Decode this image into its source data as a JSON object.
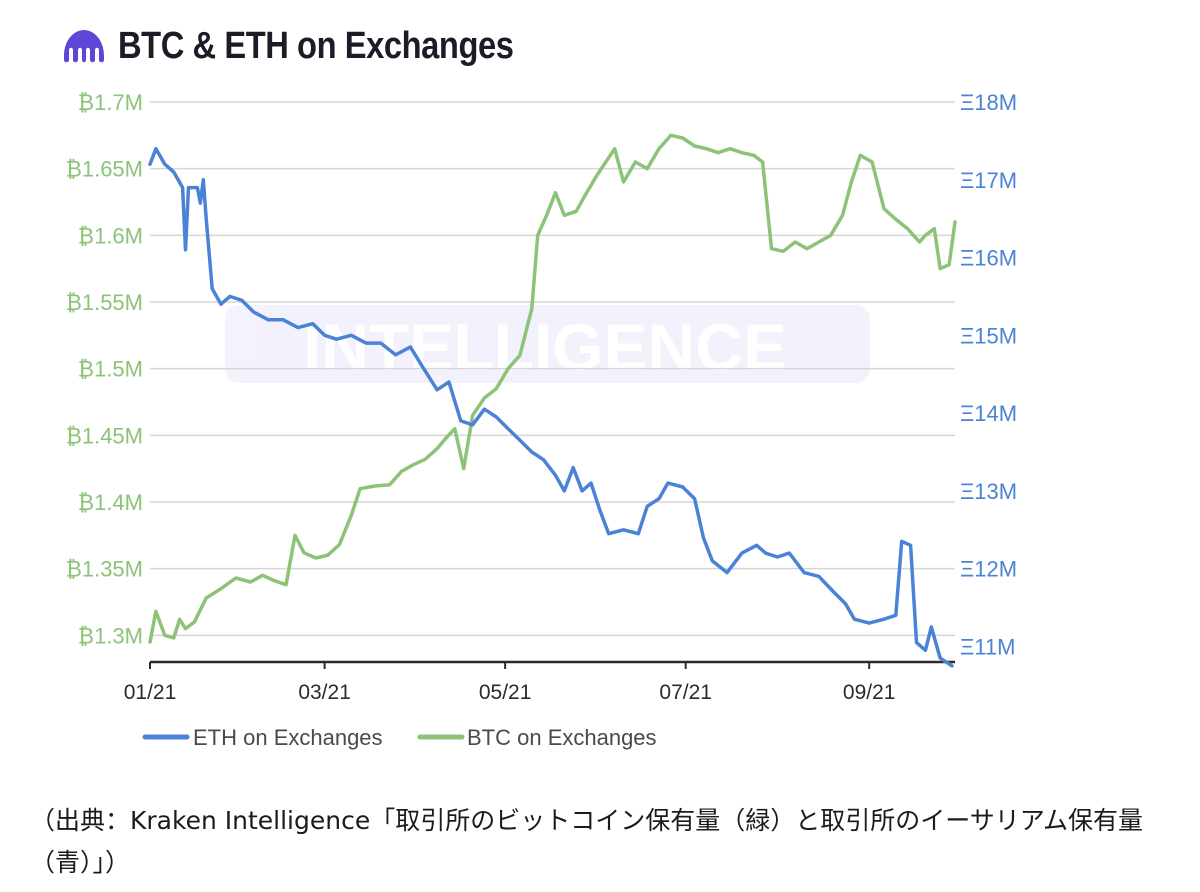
{
  "title": "BTC & ETH on Exchanges",
  "watermark": "INTELLIGENCE",
  "caption": "（出典：Kraken Intelligence「取引所のビットコイン保有量（緑）と取引所のイーサリアム保有量（青）」）",
  "colors": {
    "btc": "#8cc378",
    "eth": "#4a83d6",
    "logo": "#6046d8",
    "grid": "#d6d6d6",
    "axis": "#2b2b2b"
  },
  "chart_data": {
    "type": "line",
    "title": "BTC & ETH on Exchanges",
    "x_ticks": [
      "01/21",
      "03/21",
      "05/21",
      "07/21",
      "09/21"
    ],
    "x_range": [
      "2021-01-01",
      "2021-09-30"
    ],
    "y_left": {
      "unit": "BTC",
      "range": [
        1.28,
        1.7
      ],
      "ticks": [
        {
          "value": 1.7,
          "label": "₿1.7M"
        },
        {
          "value": 1.65,
          "label": "₿1.65M"
        },
        {
          "value": 1.6,
          "label": "₿1.6M"
        },
        {
          "value": 1.55,
          "label": "₿1.55M"
        },
        {
          "value": 1.5,
          "label": "₿1.5M"
        },
        {
          "value": 1.45,
          "label": "₿1.45M"
        },
        {
          "value": 1.4,
          "label": "₿1.4M"
        },
        {
          "value": 1.35,
          "label": "₿1.35M"
        },
        {
          "value": 1.3,
          "label": "₿1.3M"
        }
      ]
    },
    "y_right": {
      "unit": "ETH",
      "range": [
        10.8,
        18
      ],
      "ticks": [
        {
          "value": 18,
          "label": "Ξ18M"
        },
        {
          "value": 17,
          "label": "Ξ17M"
        },
        {
          "value": 16,
          "label": "Ξ16M"
        },
        {
          "value": 15,
          "label": "Ξ15M"
        },
        {
          "value": 14,
          "label": "Ξ14M"
        },
        {
          "value": 13,
          "label": "Ξ13M"
        },
        {
          "value": 12,
          "label": "Ξ12M"
        },
        {
          "value": 11,
          "label": "Ξ11M"
        }
      ]
    },
    "grid": true,
    "legend_position": "bottom-left",
    "series": [
      {
        "name": "ETH on Exchanges",
        "axis": "right",
        "points": [
          [
            "2021-01-01",
            17.2
          ],
          [
            "2021-01-03",
            17.4
          ],
          [
            "2021-01-06",
            17.2
          ],
          [
            "2021-01-09",
            17.1
          ],
          [
            "2021-01-12",
            16.9
          ],
          [
            "2021-01-13",
            16.1
          ],
          [
            "2021-01-14",
            16.9
          ],
          [
            "2021-01-17",
            16.9
          ],
          [
            "2021-01-18",
            16.7
          ],
          [
            "2021-01-19",
            17.0
          ],
          [
            "2021-01-20",
            16.5
          ],
          [
            "2021-01-22",
            15.6
          ],
          [
            "2021-01-25",
            15.4
          ],
          [
            "2021-01-28",
            15.5
          ],
          [
            "2021-02-01",
            15.45
          ],
          [
            "2021-02-05",
            15.3
          ],
          [
            "2021-02-10",
            15.2
          ],
          [
            "2021-02-15",
            15.2
          ],
          [
            "2021-02-20",
            15.1
          ],
          [
            "2021-02-25",
            15.15
          ],
          [
            "2021-03-01",
            15.0
          ],
          [
            "2021-03-05",
            14.95
          ],
          [
            "2021-03-10",
            15.0
          ],
          [
            "2021-03-15",
            14.9
          ],
          [
            "2021-03-20",
            14.9
          ],
          [
            "2021-03-25",
            14.75
          ],
          [
            "2021-03-30",
            14.85
          ],
          [
            "2021-04-03",
            14.6
          ],
          [
            "2021-04-08",
            14.3
          ],
          [
            "2021-04-12",
            14.4
          ],
          [
            "2021-04-16",
            13.9
          ],
          [
            "2021-04-20",
            13.85
          ],
          [
            "2021-04-24",
            14.05
          ],
          [
            "2021-04-28",
            13.95
          ],
          [
            "2021-05-02",
            13.8
          ],
          [
            "2021-05-06",
            13.65
          ],
          [
            "2021-05-10",
            13.5
          ],
          [
            "2021-05-14",
            13.4
          ],
          [
            "2021-05-18",
            13.2
          ],
          [
            "2021-05-21",
            13.0
          ],
          [
            "2021-05-24",
            13.3
          ],
          [
            "2021-05-27",
            13.0
          ],
          [
            "2021-05-30",
            13.1
          ],
          [
            "2021-06-02",
            12.75
          ],
          [
            "2021-06-05",
            12.45
          ],
          [
            "2021-06-10",
            12.5
          ],
          [
            "2021-06-15",
            12.45
          ],
          [
            "2021-06-18",
            12.8
          ],
          [
            "2021-06-22",
            12.9
          ],
          [
            "2021-06-25",
            13.1
          ],
          [
            "2021-06-30",
            13.05
          ],
          [
            "2021-07-04",
            12.9
          ],
          [
            "2021-07-07",
            12.4
          ],
          [
            "2021-07-10",
            12.1
          ],
          [
            "2021-07-15",
            11.95
          ],
          [
            "2021-07-20",
            12.2
          ],
          [
            "2021-07-25",
            12.3
          ],
          [
            "2021-07-28",
            12.2
          ],
          [
            "2021-08-01",
            12.15
          ],
          [
            "2021-08-05",
            12.2
          ],
          [
            "2021-08-10",
            11.95
          ],
          [
            "2021-08-15",
            11.9
          ],
          [
            "2021-08-20",
            11.7
          ],
          [
            "2021-08-24",
            11.55
          ],
          [
            "2021-08-27",
            11.35
          ],
          [
            "2021-09-01",
            11.3
          ],
          [
            "2021-09-06",
            11.35
          ],
          [
            "2021-09-10",
            11.4
          ],
          [
            "2021-09-12",
            12.35
          ],
          [
            "2021-09-15",
            12.3
          ],
          [
            "2021-09-17",
            11.05
          ],
          [
            "2021-09-20",
            10.95
          ],
          [
            "2021-09-22",
            11.25
          ],
          [
            "2021-09-25",
            10.85
          ],
          [
            "2021-09-29",
            10.75
          ]
        ]
      },
      {
        "name": "BTC on Exchanges",
        "axis": "left",
        "points": [
          [
            "2021-01-01",
            1.295
          ],
          [
            "2021-01-03",
            1.318
          ],
          [
            "2021-01-06",
            1.3
          ],
          [
            "2021-01-09",
            1.298
          ],
          [
            "2021-01-11",
            1.312
          ],
          [
            "2021-01-13",
            1.305
          ],
          [
            "2021-01-16",
            1.31
          ],
          [
            "2021-01-20",
            1.328
          ],
          [
            "2021-01-25",
            1.335
          ],
          [
            "2021-01-30",
            1.343
          ],
          [
            "2021-02-04",
            1.34
          ],
          [
            "2021-02-08",
            1.345
          ],
          [
            "2021-02-12",
            1.341
          ],
          [
            "2021-02-16",
            1.338
          ],
          [
            "2021-02-19",
            1.375
          ],
          [
            "2021-02-22",
            1.362
          ],
          [
            "2021-02-26",
            1.358
          ],
          [
            "2021-03-02",
            1.36
          ],
          [
            "2021-03-06",
            1.368
          ],
          [
            "2021-03-10",
            1.39
          ],
          [
            "2021-03-13",
            1.41
          ],
          [
            "2021-03-18",
            1.412
          ],
          [
            "2021-03-23",
            1.413
          ],
          [
            "2021-03-27",
            1.423
          ],
          [
            "2021-03-31",
            1.428
          ],
          [
            "2021-04-04",
            1.432
          ],
          [
            "2021-04-08",
            1.44
          ],
          [
            "2021-04-11",
            1.448
          ],
          [
            "2021-04-14",
            1.455
          ],
          [
            "2021-04-17",
            1.425
          ],
          [
            "2021-04-20",
            1.465
          ],
          [
            "2021-04-24",
            1.478
          ],
          [
            "2021-04-28",
            1.485
          ],
          [
            "2021-05-02",
            1.5
          ],
          [
            "2021-05-06",
            1.51
          ],
          [
            "2021-05-10",
            1.545
          ],
          [
            "2021-05-12",
            1.6
          ],
          [
            "2021-05-15",
            1.615
          ],
          [
            "2021-05-18",
            1.632
          ],
          [
            "2021-05-21",
            1.615
          ],
          [
            "2021-05-25",
            1.618
          ],
          [
            "2021-05-28",
            1.63
          ],
          [
            "2021-06-01",
            1.645
          ],
          [
            "2021-06-04",
            1.655
          ],
          [
            "2021-06-07",
            1.665
          ],
          [
            "2021-06-10",
            1.64
          ],
          [
            "2021-06-14",
            1.655
          ],
          [
            "2021-06-18",
            1.65
          ],
          [
            "2021-06-22",
            1.665
          ],
          [
            "2021-06-26",
            1.675
          ],
          [
            "2021-06-30",
            1.673
          ],
          [
            "2021-07-04",
            1.667
          ],
          [
            "2021-07-08",
            1.665
          ],
          [
            "2021-07-12",
            1.662
          ],
          [
            "2021-07-16",
            1.665
          ],
          [
            "2021-07-20",
            1.662
          ],
          [
            "2021-07-24",
            1.66
          ],
          [
            "2021-07-27",
            1.655
          ],
          [
            "2021-07-30",
            1.59
          ],
          [
            "2021-08-03",
            1.588
          ],
          [
            "2021-08-07",
            1.595
          ],
          [
            "2021-08-11",
            1.59
          ],
          [
            "2021-08-15",
            1.595
          ],
          [
            "2021-08-19",
            1.6
          ],
          [
            "2021-08-23",
            1.615
          ],
          [
            "2021-08-26",
            1.64
          ],
          [
            "2021-08-29",
            1.66
          ],
          [
            "2021-09-02",
            1.655
          ],
          [
            "2021-09-06",
            1.62
          ],
          [
            "2021-09-10",
            1.612
          ],
          [
            "2021-09-14",
            1.605
          ],
          [
            "2021-09-18",
            1.595
          ],
          [
            "2021-09-20",
            1.6
          ],
          [
            "2021-09-23",
            1.605
          ],
          [
            "2021-09-25",
            1.575
          ],
          [
            "2021-09-28",
            1.578
          ],
          [
            "2021-09-30",
            1.61
          ]
        ]
      }
    ]
  }
}
